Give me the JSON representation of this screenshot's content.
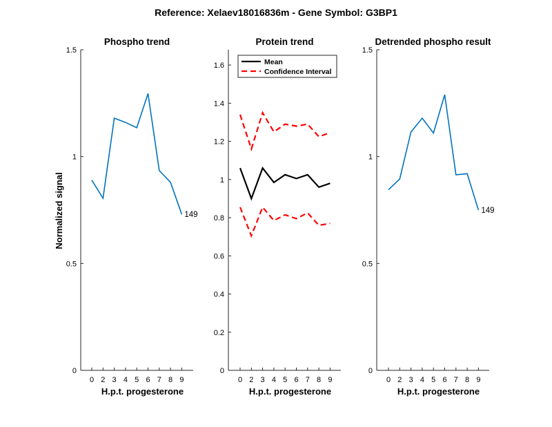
{
  "figure": {
    "suptitle": "Reference:  Xelaev18016836m - Gene Symbol:  G3BP1",
    "ylabel": "Normalized signal"
  },
  "chart_data": [
    {
      "type": "line",
      "title": "Phospho trend",
      "xlabel": "H.p.t. progesterone",
      "ylabel": "Normalized signal",
      "categories": [
        "0",
        "2",
        "3",
        "4",
        "5",
        "6",
        "7",
        "8",
        "9"
      ],
      "ylim": [
        0,
        1.5
      ],
      "yticks": [
        "0",
        "0.5",
        "1",
        "1.5"
      ],
      "series": [
        {
          "values": [
            0.89,
            0.805,
            1.18,
            1.16,
            1.135,
            1.295,
            0.935,
            0.88,
            0.73
          ],
          "color": "#0072BD",
          "dash": "solid",
          "end_label": "149"
        }
      ],
      "legend": null,
      "grid": false
    },
    {
      "type": "line",
      "title": "Protein trend",
      "xlabel": "H.p.t. progesterone",
      "ylabel": "",
      "categories": [
        "0",
        "2",
        "3",
        "4",
        "5",
        "6",
        "7",
        "8",
        "9"
      ],
      "ylim": [
        0,
        1.68
      ],
      "yticks": [
        "0",
        "0.2",
        "0.4",
        "0.6",
        "0.8",
        "1",
        "1.2",
        "1.4",
        "1.6"
      ],
      "series": [
        {
          "name": "Mean",
          "values": [
            1.06,
            0.9,
            1.06,
            0.985,
            1.025,
            1.005,
            1.025,
            0.96,
            0.98
          ],
          "color": "#000000",
          "dash": "solid"
        },
        {
          "name": "Confidence Interval",
          "values": [
            1.34,
            1.16,
            1.35,
            1.25,
            1.29,
            1.28,
            1.29,
            1.225,
            1.245
          ],
          "color": "#FF0000",
          "dash": "dashed"
        },
        {
          "values": [
            0.855,
            0.705,
            0.855,
            0.785,
            0.815,
            0.795,
            0.825,
            0.76,
            0.77
          ],
          "color": "#FF0000",
          "dash": "dashed"
        }
      ],
      "legend": "top-left",
      "grid": false
    },
    {
      "type": "line",
      "title": "Detrended phospho result",
      "xlabel": "H.p.t. progesterone",
      "ylabel": "",
      "categories": [
        "0",
        "2",
        "3",
        "4",
        "5",
        "6",
        "7",
        "8",
        "9"
      ],
      "ylim": [
        0,
        1.5
      ],
      "yticks": [
        "0",
        "0.5",
        "1",
        "1.5"
      ],
      "series": [
        {
          "values": [
            0.845,
            0.895,
            1.115,
            1.18,
            1.11,
            1.29,
            0.915,
            0.92,
            0.75
          ],
          "color": "#0072BD",
          "dash": "solid",
          "end_label": "149"
        }
      ],
      "legend": null,
      "grid": false
    }
  ]
}
